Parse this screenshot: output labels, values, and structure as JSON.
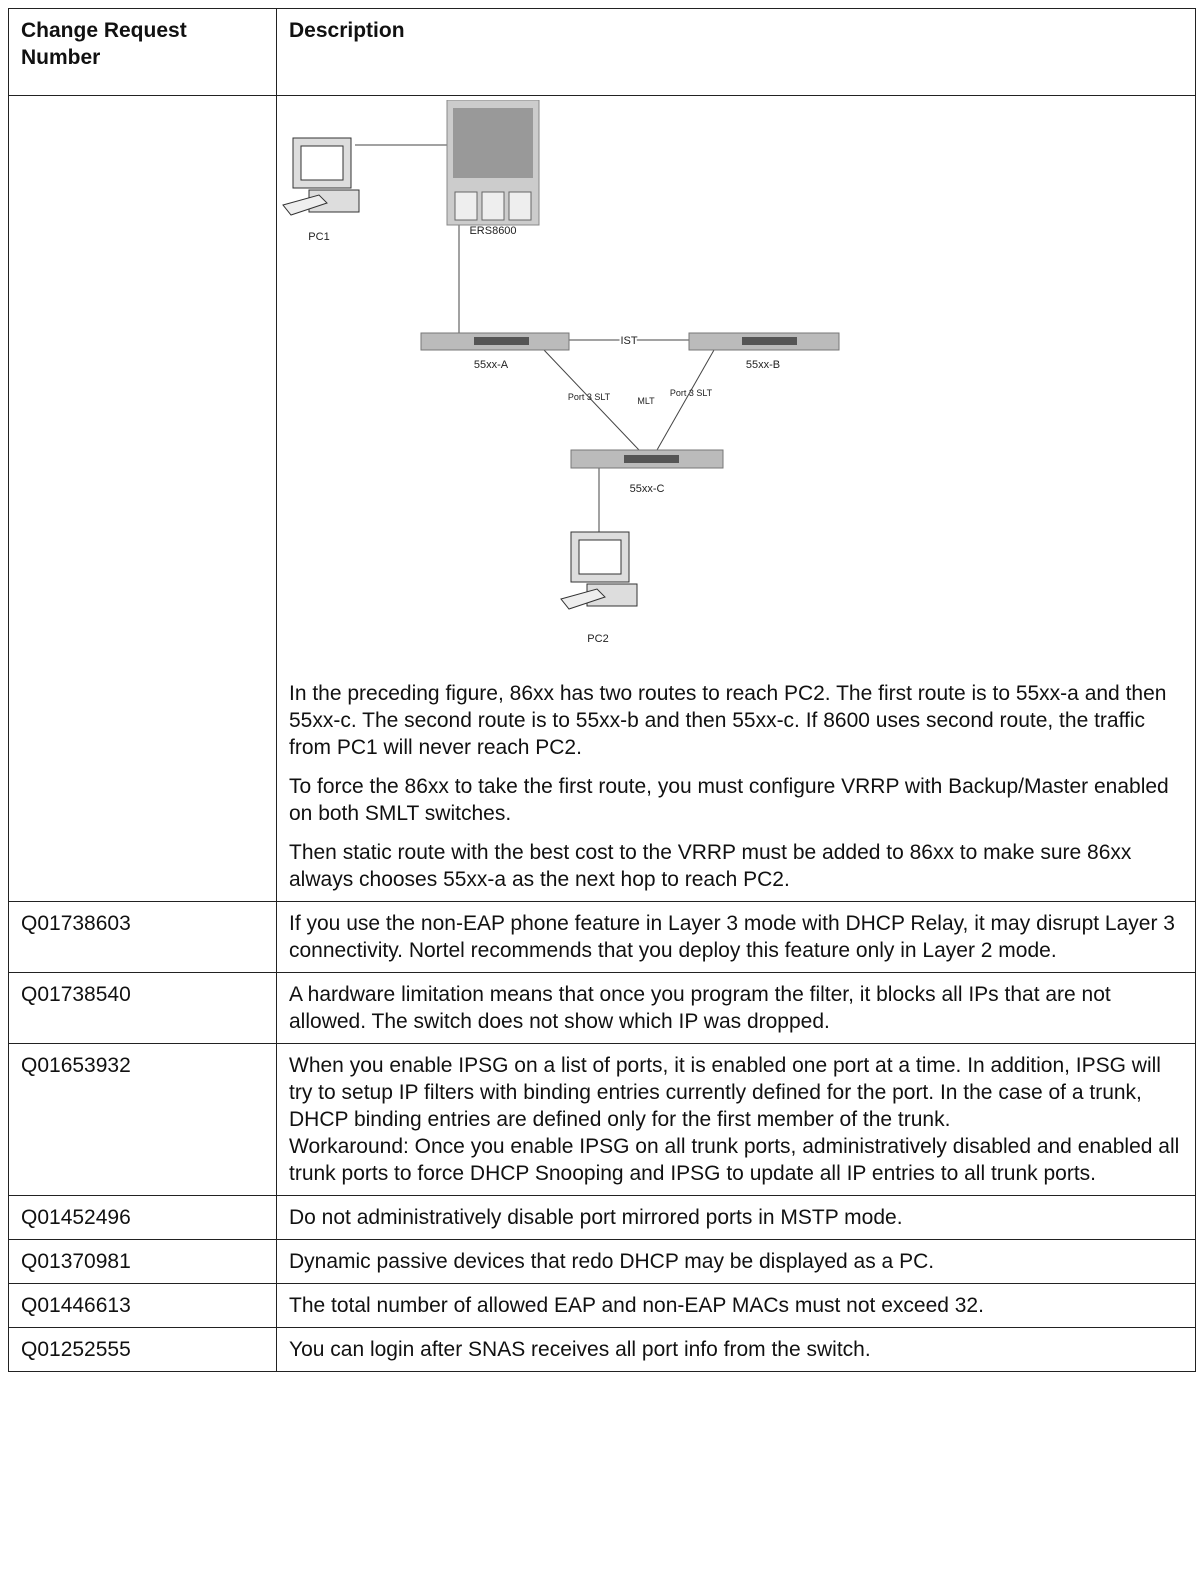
{
  "table": {
    "header": [
      "Change Request Number",
      "Description"
    ],
    "rows": [
      {
        "figure": {
          "labels": {
            "pc1": "PC1",
            "ers": "ERS8600",
            "sw_a": "55xx-A",
            "ist": "IST",
            "sw_b": "55xx-B",
            "slt_a": "Port 3 SLT",
            "mlt": "MLT",
            "slt_b": "Port 3 SLT",
            "sw_c": "55xx-C",
            "pc2": "PC2"
          }
        },
        "paragraphs": [
          "In the preceding figure, 86xx has two routes to reach PC2. The first route is to 55xx-a and then 55xx-c. The second route is to 55xx-b and then 55xx-c. If 8600 uses second route, the traffic from PC1 will never reach PC2.",
          "To force the 86xx to take the first route, you must configure VRRP with Backup/Master enabled on both SMLT switches.",
          "Then static route with the best cost to the VRRP must be added to 86xx to make sure 86xx always chooses 55xx-a as the next hop to reach PC2."
        ]
      },
      {
        "number": "Q01738603",
        "lines": [
          "If you use the non-EAP phone feature in Layer 3 mode with DHCP Relay, it may disrupt Layer 3 connectivity. Nortel recommends that you deploy this feature only in Layer 2 mode."
        ]
      },
      {
        "number": "Q01738540",
        "lines": [
          "A hardware limitation means that once you program the filter, it blocks all IPs that are not allowed. The switch does not show which IP was dropped."
        ]
      },
      {
        "number": "Q01653932",
        "lines": [
          "When you enable IPSG on a list of ports, it is enabled one port at a time. In addition, IPSG will try to setup IP filters with binding entries currently defined for the port. In the case of a trunk, DHCP binding entries are defined only for the first member of the trunk.",
          "Workaround: Once you enable IPSG on all trunk ports, administratively disabled and enabled all trunk ports to force DHCP Snooping and IPSG to update all IP entries to all trunk ports."
        ]
      },
      {
        "number": "Q01452496",
        "lines": [
          "Do not administratively disable port mirrored ports in MSTP mode."
        ]
      },
      {
        "number": "Q01370981",
        "lines": [
          "Dynamic passive devices that redo DHCP may be displayed as a PC."
        ]
      },
      {
        "number": "Q01446613",
        "lines": [
          "The total number of allowed EAP and non-EAP MACs must not exceed 32."
        ]
      },
      {
        "number": "Q01252555",
        "lines": [
          "You can login after SNAS receives all port info from the switch."
        ]
      }
    ]
  }
}
